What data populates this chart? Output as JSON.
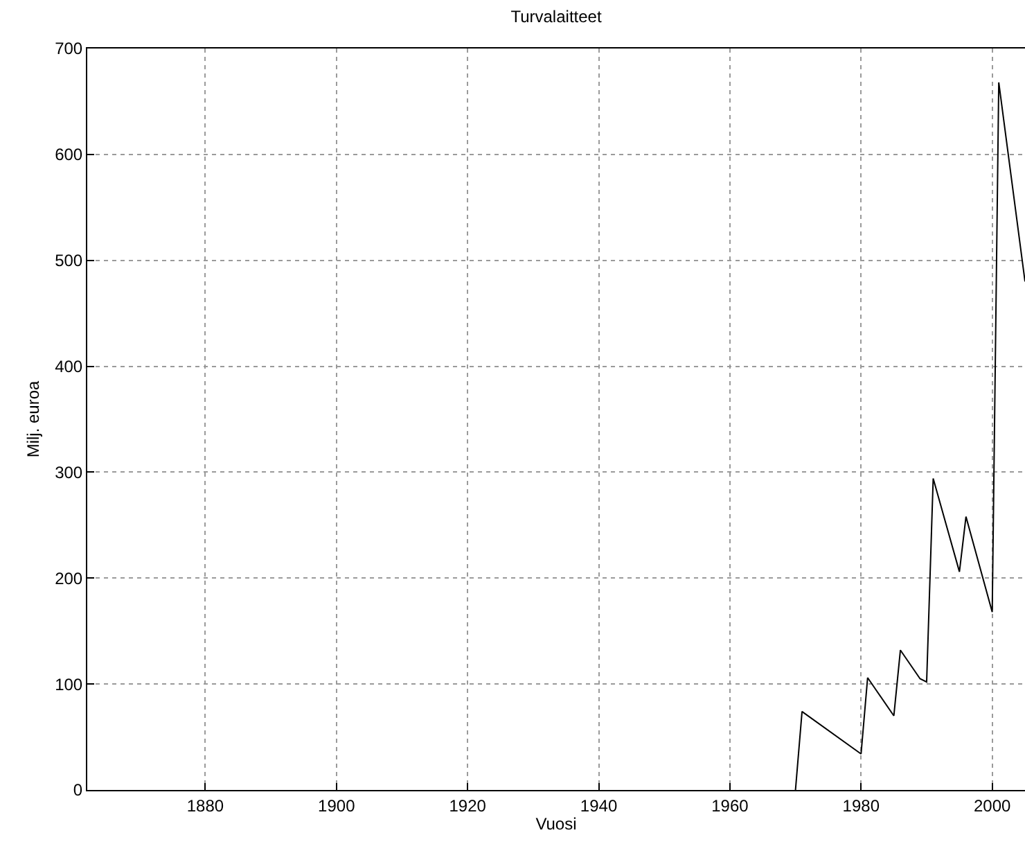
{
  "chart_data": {
    "type": "line",
    "title": "Turvalaitteet",
    "xlabel": "Vuosi",
    "ylabel": "Milj. euroa",
    "x": [
      1970,
      1971,
      1980,
      1981,
      1985,
      1986,
      1989,
      1990,
      1991,
      1995,
      1996,
      2000,
      2001,
      2005
    ],
    "series": [
      {
        "color": "#000000",
        "values": [
          0,
          74,
          34,
          106,
          70,
          132,
          105,
          102,
          294,
          206,
          258,
          168,
          668,
          480
        ]
      }
    ],
    "xlim": [
      1862,
      2005
    ],
    "xticks": [
      1880,
      1900,
      1920,
      1940,
      1960,
      1980,
      2000
    ],
    "ylim": [
      0,
      700
    ],
    "yticks": [
      0,
      100,
      200,
      300,
      400,
      500,
      600,
      700
    ],
    "grid": true,
    "line_style": "solid"
  }
}
